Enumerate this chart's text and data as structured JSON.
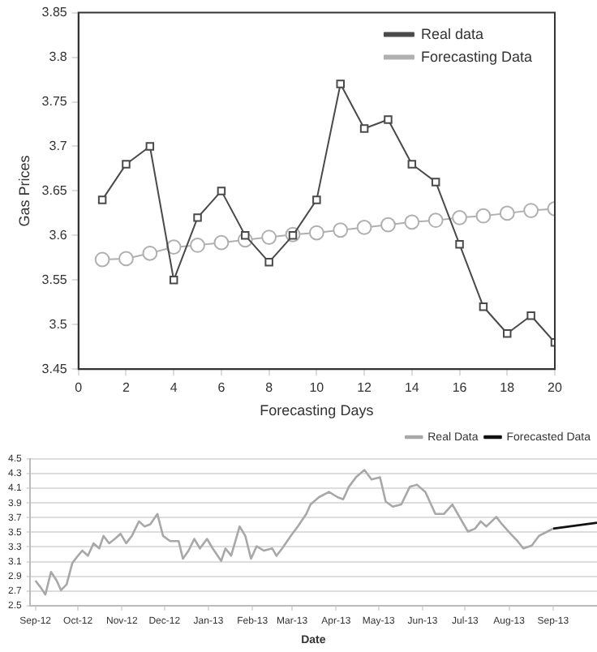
{
  "chart_data": [
    {
      "type": "line",
      "xlabel": "Forecasting Days",
      "ylabel": "Gas Prices",
      "x": [
        1,
        2,
        3,
        4,
        5,
        6,
        7,
        8,
        9,
        10,
        11,
        12,
        13,
        14,
        15,
        16,
        17,
        18,
        19,
        20
      ],
      "xlim": [
        0,
        20
      ],
      "xticks": [
        0,
        2,
        4,
        6,
        8,
        10,
        12,
        14,
        16,
        18,
        20
      ],
      "ylim": [
        3.45,
        3.85
      ],
      "yticks": [
        3.45,
        3.5,
        3.55,
        3.6,
        3.65,
        3.7,
        3.75,
        3.8,
        3.85
      ],
      "grid": false,
      "legend": "top right",
      "series": [
        {
          "name": "Real data",
          "color": "#4a4a4a",
          "marker": "square",
          "values": [
            3.64,
            3.68,
            3.7,
            3.55,
            3.62,
            3.65,
            3.6,
            3.57,
            3.6,
            3.64,
            3.77,
            3.72,
            3.73,
            3.68,
            3.66,
            3.59,
            3.52,
            3.49,
            3.51,
            3.48
          ]
        },
        {
          "name": "Forecasting Data",
          "color": "#b0b0b0",
          "marker": "circle",
          "values": [
            3.573,
            3.574,
            3.58,
            3.587,
            3.589,
            3.592,
            3.595,
            3.598,
            3.601,
            3.603,
            3.606,
            3.609,
            3.612,
            3.615,
            3.617,
            3.62,
            3.622,
            3.625,
            3.628,
            3.63
          ]
        }
      ]
    },
    {
      "type": "line",
      "xlabel": "Date",
      "xlim": [
        "2012-08-28",
        "2013-10-02"
      ],
      "xticks": [
        {
          "value": "2012-09-01",
          "label": "Sep-12"
        },
        {
          "value": "2012-10-01",
          "label": "Oct-12"
        },
        {
          "value": "2012-11-01",
          "label": "Nov-12"
        },
        {
          "value": "2012-12-01",
          "label": "Dec-12"
        },
        {
          "value": "2013-01-01",
          "label": "Jan-13"
        },
        {
          "value": "2013-02-01",
          "label": "Feb-13"
        },
        {
          "value": "2013-03-01",
          "label": "Mar-13"
        },
        {
          "value": "2013-04-01",
          "label": "Apr-13"
        },
        {
          "value": "2013-05-01",
          "label": "May-13"
        },
        {
          "value": "2013-06-01",
          "label": "Jun-13"
        },
        {
          "value": "2013-07-01",
          "label": "Jul-13"
        },
        {
          "value": "2013-08-01",
          "label": "Aug-13"
        },
        {
          "value": "2013-09-01",
          "label": "Sep-13"
        }
      ],
      "ylim": [
        2.5,
        4.5
      ],
      "yticks": [
        2.5,
        2.7,
        2.9,
        3.1,
        3.3,
        3.5,
        3.7,
        3.9,
        4.1,
        4.3,
        4.5
      ],
      "grid": "y",
      "legend": "top right",
      "marker": "none",
      "series": [
        {
          "name": "Real Data",
          "color": "#a8a8a8",
          "x": [
            "2012-09-01",
            "2012-09-05",
            "2012-09-08",
            "2012-09-12",
            "2012-09-16",
            "2012-09-19",
            "2012-09-23",
            "2012-09-27",
            "2012-10-01",
            "2012-10-04",
            "2012-10-08",
            "2012-10-12",
            "2012-10-16",
            "2012-10-19",
            "2012-10-23",
            "2012-10-27",
            "2012-10-31",
            "2012-11-04",
            "2012-11-08",
            "2012-11-13",
            "2012-11-17",
            "2012-11-21",
            "2012-11-26",
            "2012-11-30",
            "2012-12-05",
            "2012-12-11",
            "2012-12-14",
            "2012-12-18",
            "2012-12-22",
            "2012-12-26",
            "2012-12-31",
            "2013-01-04",
            "2013-01-10",
            "2013-01-13",
            "2013-01-17",
            "2013-01-23",
            "2013-01-27",
            "2013-01-31",
            "2013-02-04",
            "2013-02-09",
            "2013-02-15",
            "2013-02-18",
            "2013-02-22",
            "2013-02-28",
            "2013-03-05",
            "2013-03-11",
            "2013-03-14",
            "2013-03-20",
            "2013-03-27",
            "2013-04-02",
            "2013-04-06",
            "2013-04-10",
            "2013-04-15",
            "2013-04-21",
            "2013-04-26",
            "2013-05-02",
            "2013-05-06",
            "2013-05-11",
            "2013-05-17",
            "2013-05-23",
            "2013-05-28",
            "2013-06-03",
            "2013-06-10",
            "2013-06-16",
            "2013-06-22",
            "2013-06-27",
            "2013-07-03",
            "2013-07-08",
            "2013-07-12",
            "2013-07-16",
            "2013-07-23",
            "2013-07-27",
            "2013-08-02",
            "2013-08-07",
            "2013-08-11",
            "2013-08-17",
            "2013-08-22",
            "2013-08-28",
            "2013-09-01"
          ],
          "values": [
            2.84,
            2.74,
            2.65,
            2.96,
            2.84,
            2.71,
            2.79,
            3.08,
            3.18,
            3.25,
            3.18,
            3.35,
            3.28,
            3.45,
            3.35,
            3.41,
            3.48,
            3.35,
            3.45,
            3.65,
            3.58,
            3.61,
            3.75,
            3.45,
            3.38,
            3.38,
            3.14,
            3.25,
            3.41,
            3.28,
            3.41,
            3.28,
            3.11,
            3.28,
            3.18,
            3.58,
            3.45,
            3.14,
            3.31,
            3.25,
            3.28,
            3.18,
            3.28,
            3.45,
            3.58,
            3.75,
            3.88,
            3.98,
            4.05,
            3.98,
            3.95,
            4.12,
            4.25,
            4.35,
            4.22,
            4.25,
            3.92,
            3.85,
            3.88,
            4.12,
            4.15,
            4.05,
            3.75,
            3.75,
            3.88,
            3.71,
            3.51,
            3.55,
            3.65,
            3.58,
            3.71,
            3.61,
            3.48,
            3.38,
            3.28,
            3.32,
            3.45,
            3.51,
            3.55
          ]
        },
        {
          "name": "Forecasted Data",
          "color": "#111111",
          "x": [
            "2013-09-01",
            "2013-10-02"
          ],
          "values": [
            3.55,
            3.63
          ]
        }
      ]
    }
  ]
}
